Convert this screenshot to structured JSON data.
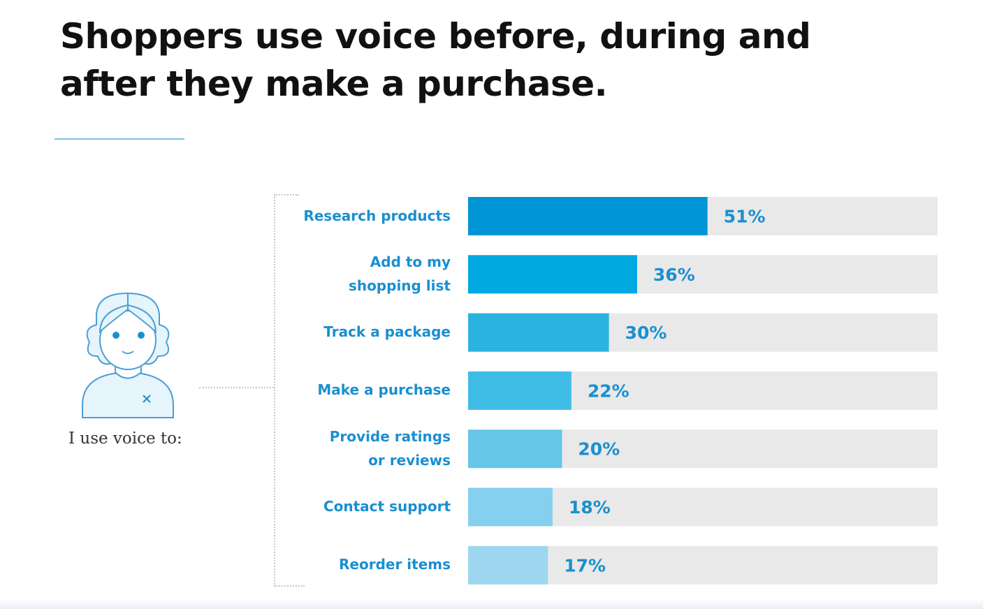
{
  "chart_data": {
    "type": "bar",
    "orientation": "horizontal",
    "title": "Shoppers use voice before, during and after they make a purchase.",
    "caption": "I use voice to:",
    "categories": [
      "Research products",
      "Add to my shopping list",
      "Track a package",
      "Make a purchase",
      "Provide ratings or reviews",
      "Contact support",
      "Reorder items"
    ],
    "category_lines": [
      [
        "Research products"
      ],
      [
        "Add to my",
        "shopping list"
      ],
      [
        "Track a package"
      ],
      [
        "Make a purchase"
      ],
      [
        "Provide ratings",
        "or reviews"
      ],
      [
        "Contact support"
      ],
      [
        "Reorder items"
      ]
    ],
    "values": [
      51,
      36,
      30,
      22,
      20,
      18,
      17
    ],
    "value_labels": [
      "51%",
      "36%",
      "30%",
      "22%",
      "20%",
      "18%",
      "17%"
    ],
    "xlim": [
      0,
      100
    ],
    "unit": "%",
    "grid": false,
    "legend": "none",
    "colors": [
      "#0096d6",
      "#00a9e0",
      "#2bb3e0",
      "#40bde6",
      "#66c6e8",
      "#85d0ee",
      "#9dd6ee"
    ],
    "track_color": "#e9e9e9",
    "label_color": "#1a8fd0"
  },
  "illustration": "woman-avatar-icon"
}
